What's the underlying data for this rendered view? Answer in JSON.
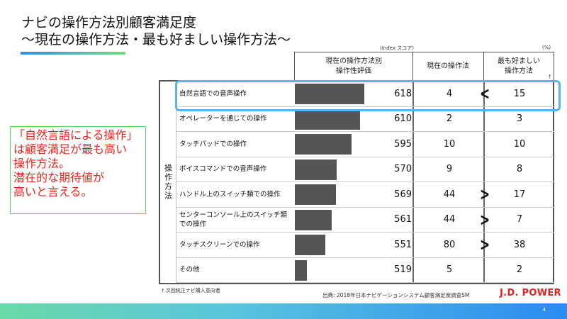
{
  "title": {
    "line1": "ナビの操作方法別顧客満足度",
    "line2": "〜現在の操作方法・最も好ましい操作方法〜"
  },
  "callout": [
    "「自然言語による操作」",
    "は顧客満足が最も高い",
    "操作方法。",
    "潜在的な期待値が",
    "高いと言える。"
  ],
  "units": {
    "score": "(Index スコア)",
    "pct": "(%)"
  },
  "headers": {
    "score": "現在の操作方法別\n操作性評価",
    "current": "現在の操作法",
    "preferred": "最も好ましい\n操作方法",
    "preferred_mark": "†"
  },
  "row_group_label": "操作方法",
  "colors": {
    "highlight": "#5ab4ea",
    "callout_text": "#e8261c",
    "callout_border": "#5fd35f",
    "bar": "#555555",
    "brand": "#e02222"
  },
  "chart_data": {
    "type": "table",
    "columns": [
      "操作方法",
      "現在の操作方法別操作性評価",
      "現在の操作法",
      "最も好ましい操作方法"
    ],
    "rows": [
      {
        "name": "自然言語での音声操作",
        "score": 618,
        "current": 4,
        "preferred": 15,
        "compare": "<"
      },
      {
        "name": "オペレーターを通じての操作",
        "score": 610,
        "current": 2,
        "preferred": 3,
        "compare": ""
      },
      {
        "name": "タッチパッドでの操作",
        "score": 595,
        "current": 10,
        "preferred": 10,
        "compare": ""
      },
      {
        "name": "ボイスコマンドでの音声操作",
        "score": 570,
        "current": 9,
        "preferred": 8,
        "compare": ""
      },
      {
        "name": "ハンドル上のスイッチ類での操作",
        "score": 569,
        "current": 44,
        "preferred": 17,
        "compare": ">"
      },
      {
        "name": "センターコンソール上のスイッチ類での操作",
        "score": 561,
        "current": 44,
        "preferred": 7,
        "compare": ">"
      },
      {
        "name": "タッチスクリーンでの操作",
        "score": 551,
        "current": 80,
        "preferred": 38,
        "compare": ">"
      },
      {
        "name": "その他",
        "score": 519,
        "current": 5,
        "preferred": 2,
        "compare": ""
      }
    ],
    "highlighted_row": "自然言語での音声操作"
  },
  "note": "† 次回純正ナビ購入意向者",
  "source": "出典: 2018年日本ナビゲーションシステム顧客満足度調査SM",
  "logo": "J.D. POWER",
  "page_number": "4"
}
